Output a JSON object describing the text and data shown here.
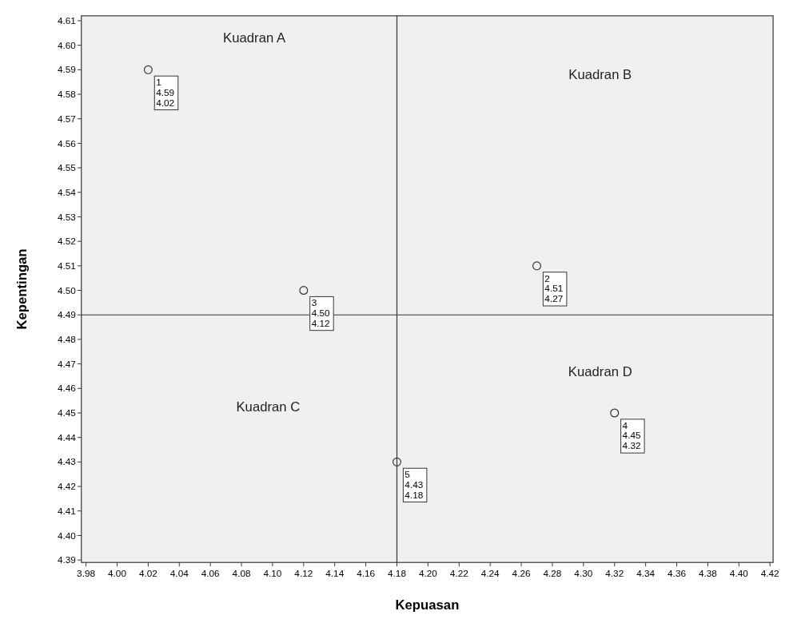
{
  "chart_data": {
    "type": "scatter",
    "xlabel": "Kepuasan",
    "ylabel": "Kepentingan",
    "x": [
      4.02,
      4.27,
      4.12,
      4.32,
      4.18
    ],
    "series": [
      {
        "color": "#333333",
        "values": [
          4.59,
          4.51,
          4.5,
          4.45,
          4.43
        ],
        "value_labels": [
          "1\n4.59\n4.02",
          "2\n4.51\n4.27",
          "3\n4.50\n4.12",
          "4\n4.45\n4.32",
          "5\n4.43\n4.18"
        ]
      }
    ],
    "marker": "circle",
    "xlim": [
      3.977,
      4.422
    ],
    "xticks": [
      {
        "value": 3.98,
        "label": "3.98"
      },
      {
        "value": 4.0,
        "label": "4.00"
      },
      {
        "value": 4.02,
        "label": "4.02"
      },
      {
        "value": 4.04,
        "label": "4.04"
      },
      {
        "value": 4.06,
        "label": "4.06"
      },
      {
        "value": 4.08,
        "label": "4.08"
      },
      {
        "value": 4.1,
        "label": "4.10"
      },
      {
        "value": 4.12,
        "label": "4.12"
      },
      {
        "value": 4.14,
        "label": "4.14"
      },
      {
        "value": 4.16,
        "label": "4.16"
      },
      {
        "value": 4.18,
        "label": "4.18"
      },
      {
        "value": 4.2,
        "label": "4.20"
      },
      {
        "value": 4.22,
        "label": "4.22"
      },
      {
        "value": 4.24,
        "label": "4.24"
      },
      {
        "value": 4.26,
        "label": "4.26"
      },
      {
        "value": 4.28,
        "label": "4.28"
      },
      {
        "value": 4.3,
        "label": "4.30"
      },
      {
        "value": 4.32,
        "label": "4.32"
      },
      {
        "value": 4.34,
        "label": "4.34"
      },
      {
        "value": 4.36,
        "label": "4.36"
      },
      {
        "value": 4.38,
        "label": "4.38"
      },
      {
        "value": 4.4,
        "label": "4.40"
      },
      {
        "value": 4.42,
        "label": "4.42"
      }
    ],
    "ylim": [
      4.389,
      4.612
    ],
    "yticks": [
      {
        "value": 4.39,
        "label": "4.39"
      },
      {
        "value": 4.4,
        "label": "4.40"
      },
      {
        "value": 4.41,
        "label": "4.41"
      },
      {
        "value": 4.42,
        "label": "4.42"
      },
      {
        "value": 4.43,
        "label": "4.43"
      },
      {
        "value": 4.44,
        "label": "4.44"
      },
      {
        "value": 4.45,
        "label": "4.45"
      },
      {
        "value": 4.46,
        "label": "4.46"
      },
      {
        "value": 4.47,
        "label": "4.47"
      },
      {
        "value": 4.48,
        "label": "4.48"
      },
      {
        "value": 4.49,
        "label": "4.49"
      },
      {
        "value": 4.5,
        "label": "4.50"
      },
      {
        "value": 4.51,
        "label": "4.51"
      },
      {
        "value": 4.52,
        "label": "4.52"
      },
      {
        "value": 4.53,
        "label": "4.53"
      },
      {
        "value": 4.54,
        "label": "4.54"
      },
      {
        "value": 4.55,
        "label": "4.55"
      },
      {
        "value": 4.56,
        "label": "4.56"
      },
      {
        "value": 4.57,
        "label": "4.57"
      },
      {
        "value": 4.58,
        "label": "4.58"
      },
      {
        "value": 4.59,
        "label": "4.59"
      },
      {
        "value": 4.6,
        "label": "4.60"
      },
      {
        "value": 4.61,
        "label": "4.61"
      }
    ],
    "ref_lines": [
      {
        "axis": "x",
        "value": 4.18,
        "color": "#333333"
      },
      {
        "axis": "y",
        "value": 4.49,
        "color": "#333333"
      }
    ],
    "annotations": [
      "Kuadran A",
      "Kuadran B",
      "Kuadran C",
      "Kuadran D"
    ]
  }
}
